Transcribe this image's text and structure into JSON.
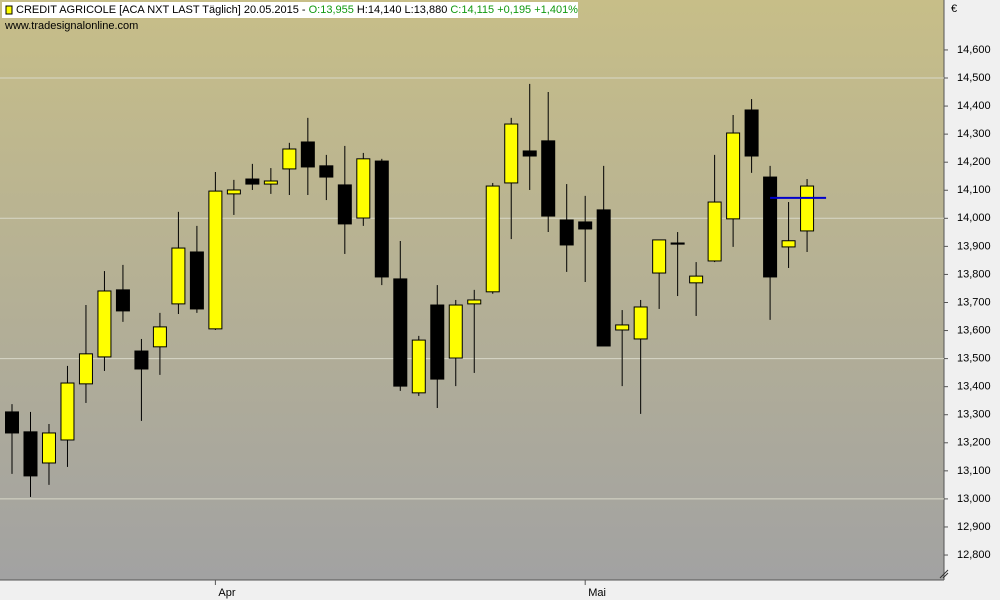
{
  "chart_data": {
    "type": "candlestick",
    "header": [
      {
        "text": "CREDIT AGRICOLE [ACA NXT LAST Täglich] 20.05.2015 -",
        "color": "#000000"
      },
      {
        "text": "O:13,955",
        "color": "#119911"
      },
      {
        "text": "H:14,140",
        "color": "#000000"
      },
      {
        "text": "L:13,880",
        "color": "#000000"
      },
      {
        "text": "C:14,115 +0,195 +1,401%",
        "color": "#119911"
      }
    ],
    "subtitle": "www.tradesignalonline.com",
    "y_unit": "€",
    "categories": [
      null,
      null,
      null,
      null,
      null,
      null,
      null,
      null,
      null,
      null,
      null,
      "Apr",
      null,
      null,
      null,
      null,
      null,
      null,
      null,
      null,
      null,
      null,
      null,
      null,
      null,
      null,
      null,
      null,
      null,
      null,
      null,
      "Mai",
      null,
      null,
      null,
      null,
      null,
      null,
      null,
      null,
      null,
      null,
      null,
      null
    ],
    "open": [
      13.31,
      13.239,
      13.128,
      13.21,
      13.41,
      13.506,
      13.745,
      13.527,
      13.542,
      13.695,
      13.88,
      13.606,
      14.087,
      14.14,
      14.122,
      14.176,
      14.272,
      14.187,
      14.119,
      14.001,
      14.204,
      13.784,
      13.378,
      13.691,
      13.502,
      13.695,
      13.738,
      14.126,
      14.24,
      14.276,
      13.994,
      13.987,
      14.03,
      13.602,
      13.57,
      13.805,
      13.912,
      13.77,
      13.848,
      13.998,
      14.386,
      14.147,
      13.898,
      13.955
    ],
    "high": [
      13.338,
      13.31,
      13.267,
      13.474,
      13.691,
      13.812,
      13.834,
      13.57,
      13.663,
      14.023,
      13.973,
      14.165,
      14.137,
      14.194,
      14.179,
      14.269,
      14.358,
      14.226,
      14.258,
      14.233,
      14.212,
      13.919,
      13.581,
      13.762,
      13.709,
      13.745,
      14.126,
      14.358,
      14.479,
      14.45,
      14.122,
      14.08,
      14.187,
      13.673,
      13.709,
      13.923,
      13.951,
      13.844,
      14.226,
      14.368,
      14.425,
      14.187,
      14.058,
      14.14
    ],
    "low": [
      13.089,
      13.007,
      13.05,
      13.114,
      13.342,
      13.456,
      13.631,
      13.278,
      13.442,
      13.659,
      13.663,
      13.602,
      14.012,
      14.101,
      14.087,
      14.083,
      14.083,
      14.065,
      13.873,
      13.973,
      13.762,
      13.385,
      13.367,
      13.324,
      13.402,
      13.449,
      13.731,
      13.926,
      14.101,
      13.951,
      13.809,
      13.773,
      13.545,
      13.402,
      13.303,
      13.677,
      13.723,
      13.652,
      13.844,
      13.898,
      14.162,
      13.638,
      13.823,
      13.88
    ],
    "close": [
      13.235,
      13.082,
      13.235,
      13.413,
      13.517,
      13.741,
      13.67,
      13.463,
      13.613,
      13.894,
      13.677,
      14.097,
      14.101,
      14.122,
      14.133,
      14.247,
      14.183,
      14.147,
      13.98,
      14.212,
      13.791,
      13.402,
      13.566,
      13.427,
      13.691,
      13.709,
      14.115,
      14.336,
      14.222,
      14.008,
      13.905,
      13.962,
      13.545,
      13.62,
      13.684,
      13.923,
      13.908,
      13.794,
      14.058,
      14.304,
      14.222,
      13.791,
      13.92,
      14.115
    ],
    "up_color": "#ffff00",
    "down_color": "#000000",
    "reference_line": {
      "value": 14.073,
      "color": "#0000cc"
    },
    "ylim": [
      12.711,
      14.778
    ],
    "yticks": [
      {
        "value": 12.8,
        "label": "12,800"
      },
      {
        "value": 12.9,
        "label": "12,900"
      },
      {
        "value": 13.0,
        "label": "13,000"
      },
      {
        "value": 13.1,
        "label": "13,100"
      },
      {
        "value": 13.2,
        "label": "13,200"
      },
      {
        "value": 13.3,
        "label": "13,300"
      },
      {
        "value": 13.4,
        "label": "13,400"
      },
      {
        "value": 13.5,
        "label": "13,500"
      },
      {
        "value": 13.6,
        "label": "13,600"
      },
      {
        "value": 13.7,
        "label": "13,700"
      },
      {
        "value": 13.8,
        "label": "13,800"
      },
      {
        "value": 13.9,
        "label": "13,900"
      },
      {
        "value": 14.0,
        "label": "14,000"
      },
      {
        "value": 14.1,
        "label": "14,100"
      },
      {
        "value": 14.2,
        "label": "14,200"
      },
      {
        "value": 14.3,
        "label": "14,300"
      },
      {
        "value": 14.4,
        "label": "14,400"
      },
      {
        "value": 14.5,
        "label": "14,500"
      },
      {
        "value": 14.6,
        "label": "14,600"
      }
    ],
    "grid": true
  }
}
